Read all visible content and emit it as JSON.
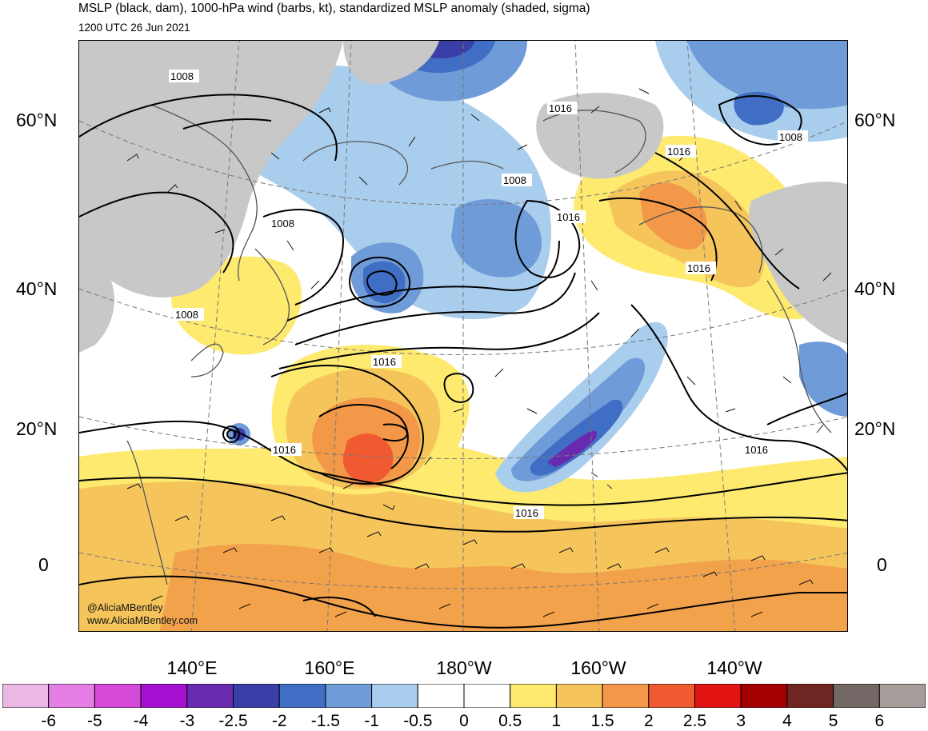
{
  "title": "MSLP (black, dam), 1000-hPa wind (barbs, kt), standardized MSLP anomaly (shaded, sigma)",
  "valid_time": "1200 UTC 26 Jun 2021",
  "latitude_labels": [
    "60°N",
    "40°N",
    "20°N",
    "0"
  ],
  "longitude_labels": [
    "140°E",
    "160°E",
    "180°W",
    "160°W",
    "140°W"
  ],
  "isobar_labels": [
    "1008",
    "1008",
    "1008",
    "1008",
    "1008",
    "1016",
    "1016",
    "1016",
    "1016",
    "1016",
    "1016",
    "1016",
    "1016"
  ],
  "credit": {
    "handle": "@AliciaMBentley",
    "site": "www.AliciaMBentley.com"
  },
  "colorbar": {
    "labels": [
      "-6",
      "-5",
      "-4",
      "-3",
      "-2.5",
      "-2",
      "-1.5",
      "-1",
      "-0.5",
      "0",
      "0.5",
      "1",
      "1.5",
      "2",
      "2.5",
      "3",
      "4",
      "5",
      "6"
    ],
    "colors": [
      "#ebb8e6",
      "#e67fe5",
      "#d54ad9",
      "#a611d1",
      "#6a2ab0",
      "#3a3fa8",
      "#3f6ec4",
      "#6f9bd8",
      "#a9cdec",
      "#ffffff",
      "#ffffff",
      "#fdea6f",
      "#f5c55c",
      "#f29848",
      "#f05a30",
      "#e31414",
      "#a50000",
      "#6e2623",
      "#746866",
      "#a69c9a"
    ]
  },
  "colors": {
    "land_gray": "#c8c8c8",
    "isobar": "#000000"
  }
}
